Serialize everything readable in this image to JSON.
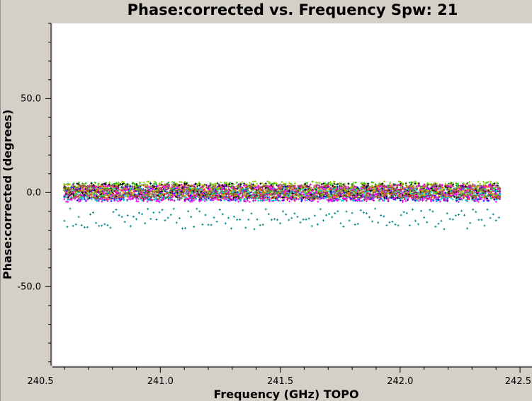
{
  "chart_data": {
    "type": "scatter",
    "title": "Phase:corrected vs. Frequency Spw: 21",
    "xlabel": "Frequency (GHz) TOPO",
    "ylabel": "Phase:corrected (degrees)",
    "xlim": [
      240.55,
      242.55
    ],
    "ylim": [
      -92,
      90
    ],
    "x_ticks": [
      240.5,
      241.0,
      241.5,
      242.0,
      242.5
    ],
    "x_tick_labels": [
      "240.5",
      "241.0",
      "241.5",
      "242.0",
      "242.5"
    ],
    "y_ticks": [
      50.0,
      0.0,
      -50.0
    ],
    "y_tick_labels": [
      "50.0",
      "0.0",
      "-50.0"
    ],
    "grid": false,
    "legend": "none",
    "x_range": [
      240.6,
      242.42
    ],
    "channel_step": 0.0075,
    "series": [
      {
        "color": "#ff0000",
        "center": 0.0,
        "spread": 4.0
      },
      {
        "color": "#00aa00",
        "center": 1.0,
        "spread": 4.5
      },
      {
        "color": "#0000ff",
        "center": -0.5,
        "spread": 4.0
      },
      {
        "color": "#ff8800",
        "center": 0.5,
        "spread": 3.5
      },
      {
        "color": "#aa00aa",
        "center": 0.0,
        "spread": 4.5
      },
      {
        "color": "#000000",
        "center": 1.0,
        "spread": 4.0
      },
      {
        "color": "#00cccc",
        "center": -1.0,
        "spread": 3.5
      },
      {
        "color": "#88cc00",
        "center": 2.0,
        "spread": 4.0
      },
      {
        "color": "#ff00ff",
        "center": -0.5,
        "spread": 4.5
      },
      {
        "color": "#996633",
        "center": 0.5,
        "spread": 3.5
      }
    ],
    "outlier_series": {
      "color": "#008b8b",
      "center": -14.0,
      "spread": 5.5
    }
  }
}
